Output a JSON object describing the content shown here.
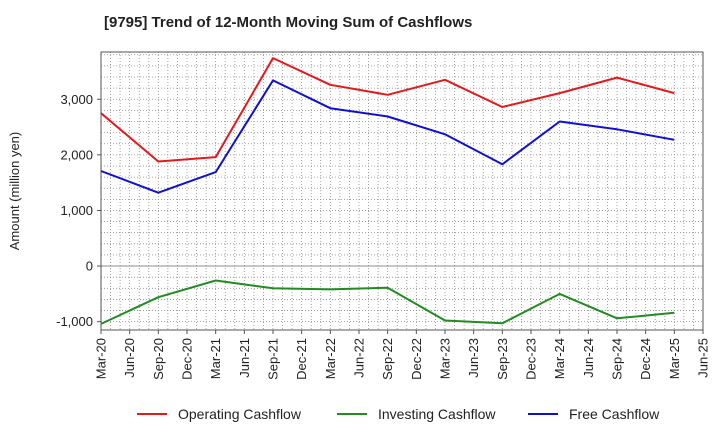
{
  "chart_data": {
    "type": "line",
    "title": "[9795]  Trend of 12-Month Moving Sum of Cashflows",
    "ylabel": "Amount (million yen)",
    "xlabel": "",
    "ylim": [
      -1150,
      3850
    ],
    "yticks": [
      -1000,
      0,
      1000,
      2000,
      3000
    ],
    "ytick_labels": [
      "-1,000",
      "0",
      "1,000",
      "2,000",
      "3,000"
    ],
    "x_tick_labels": [
      "Mar-20",
      "Jun-20",
      "Sep-20",
      "Dec-20",
      "Mar-21",
      "Jun-21",
      "Sep-21",
      "Dec-21",
      "Mar-22",
      "Jun-22",
      "Sep-22",
      "Dec-22",
      "Mar-23",
      "Jun-23",
      "Sep-23",
      "Dec-23",
      "Mar-24",
      "Jun-24",
      "Sep-24",
      "Dec-24",
      "Mar-25",
      "Jun-25"
    ],
    "grid": true,
    "legend_position": "bottom",
    "series": [
      {
        "name": "Operating Cashflow",
        "color": "#e31a1c",
        "x": [
          "Mar-20",
          "Sep-20",
          "Mar-21",
          "Sep-21",
          "Mar-22",
          "Sep-22",
          "Mar-23",
          "Sep-23",
          "Mar-24",
          "Sep-24",
          "Mar-25"
        ],
        "values": [
          2750,
          1880,
          1960,
          3740,
          3260,
          3080,
          3350,
          2860,
          3110,
          3390,
          3110
        ]
      },
      {
        "name": "Investing Cashflow",
        "color": "#228b22",
        "x": [
          "Mar-20",
          "Sep-20",
          "Mar-21",
          "Sep-21",
          "Mar-22",
          "Sep-22",
          "Mar-23",
          "Sep-23",
          "Mar-24",
          "Sep-24",
          "Mar-25"
        ],
        "values": [
          -1040,
          -560,
          -260,
          -400,
          -420,
          -390,
          -980,
          -1030,
          -500,
          -940,
          -840
        ]
      },
      {
        "name": "Free Cashflow",
        "color": "#1010d0",
        "x": [
          "Mar-20",
          "Sep-20",
          "Mar-21",
          "Sep-21",
          "Mar-22",
          "Sep-22",
          "Mar-23",
          "Sep-23",
          "Mar-24",
          "Sep-24",
          "Mar-25"
        ],
        "values": [
          1710,
          1320,
          1690,
          3340,
          2840,
          2690,
          2370,
          1830,
          2600,
          2460,
          2270
        ]
      }
    ]
  }
}
